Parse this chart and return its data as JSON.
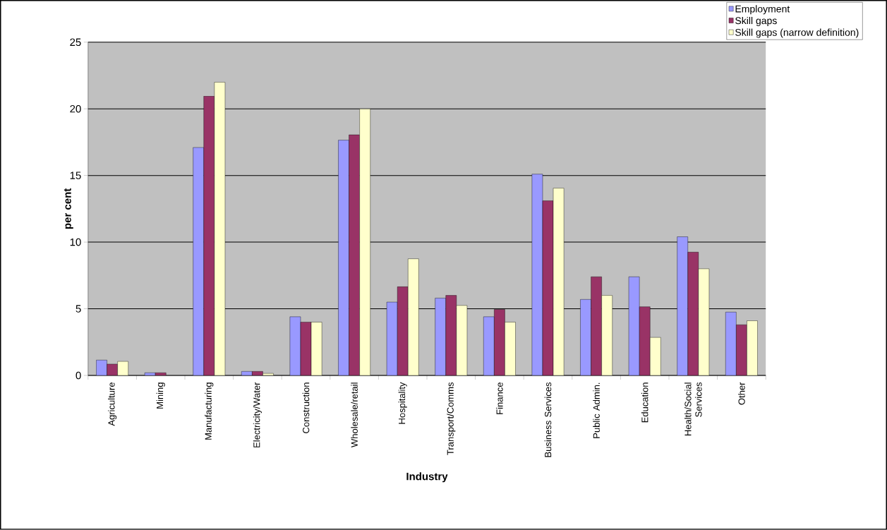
{
  "chart_data": {
    "type": "bar",
    "xlabel": "Industry",
    "ylabel": "per cent",
    "categories": [
      "Agriculture",
      "Mining",
      "Manufacturing",
      "Electricity/Water",
      "Construction",
      "Wholesale/retail",
      "Hospitality",
      "Transport/Comms",
      "Finance",
      "Business Services",
      "Public Admin.",
      "Education",
      "Health/Social Services",
      "Other"
    ],
    "series": [
      {
        "name": "Employment",
        "color": "#9999ff",
        "values": [
          1.15,
          0.2,
          17.1,
          0.3,
          4.4,
          17.65,
          5.5,
          5.8,
          4.4,
          15.1,
          5.7,
          7.4,
          10.4,
          4.75
        ]
      },
      {
        "name": "Skill gaps",
        "color": "#993366",
        "values": [
          0.85,
          0.2,
          20.95,
          0.3,
          4.0,
          18.05,
          6.65,
          6.0,
          4.95,
          13.1,
          7.4,
          5.15,
          9.25,
          3.8
        ]
      },
      {
        "name": "Skill gaps (narrow definition)",
        "color": "#ffffcc",
        "values": [
          1.05,
          null,
          22.0,
          0.15,
          4.0,
          20.0,
          8.75,
          5.25,
          4.0,
          14.05,
          6.0,
          2.85,
          8.0,
          4.1
        ]
      }
    ],
    "ylim": [
      0,
      25
    ],
    "yticks": [
      0,
      5,
      10,
      15,
      20,
      25
    ],
    "grid": "y",
    "legend": "top right"
  }
}
